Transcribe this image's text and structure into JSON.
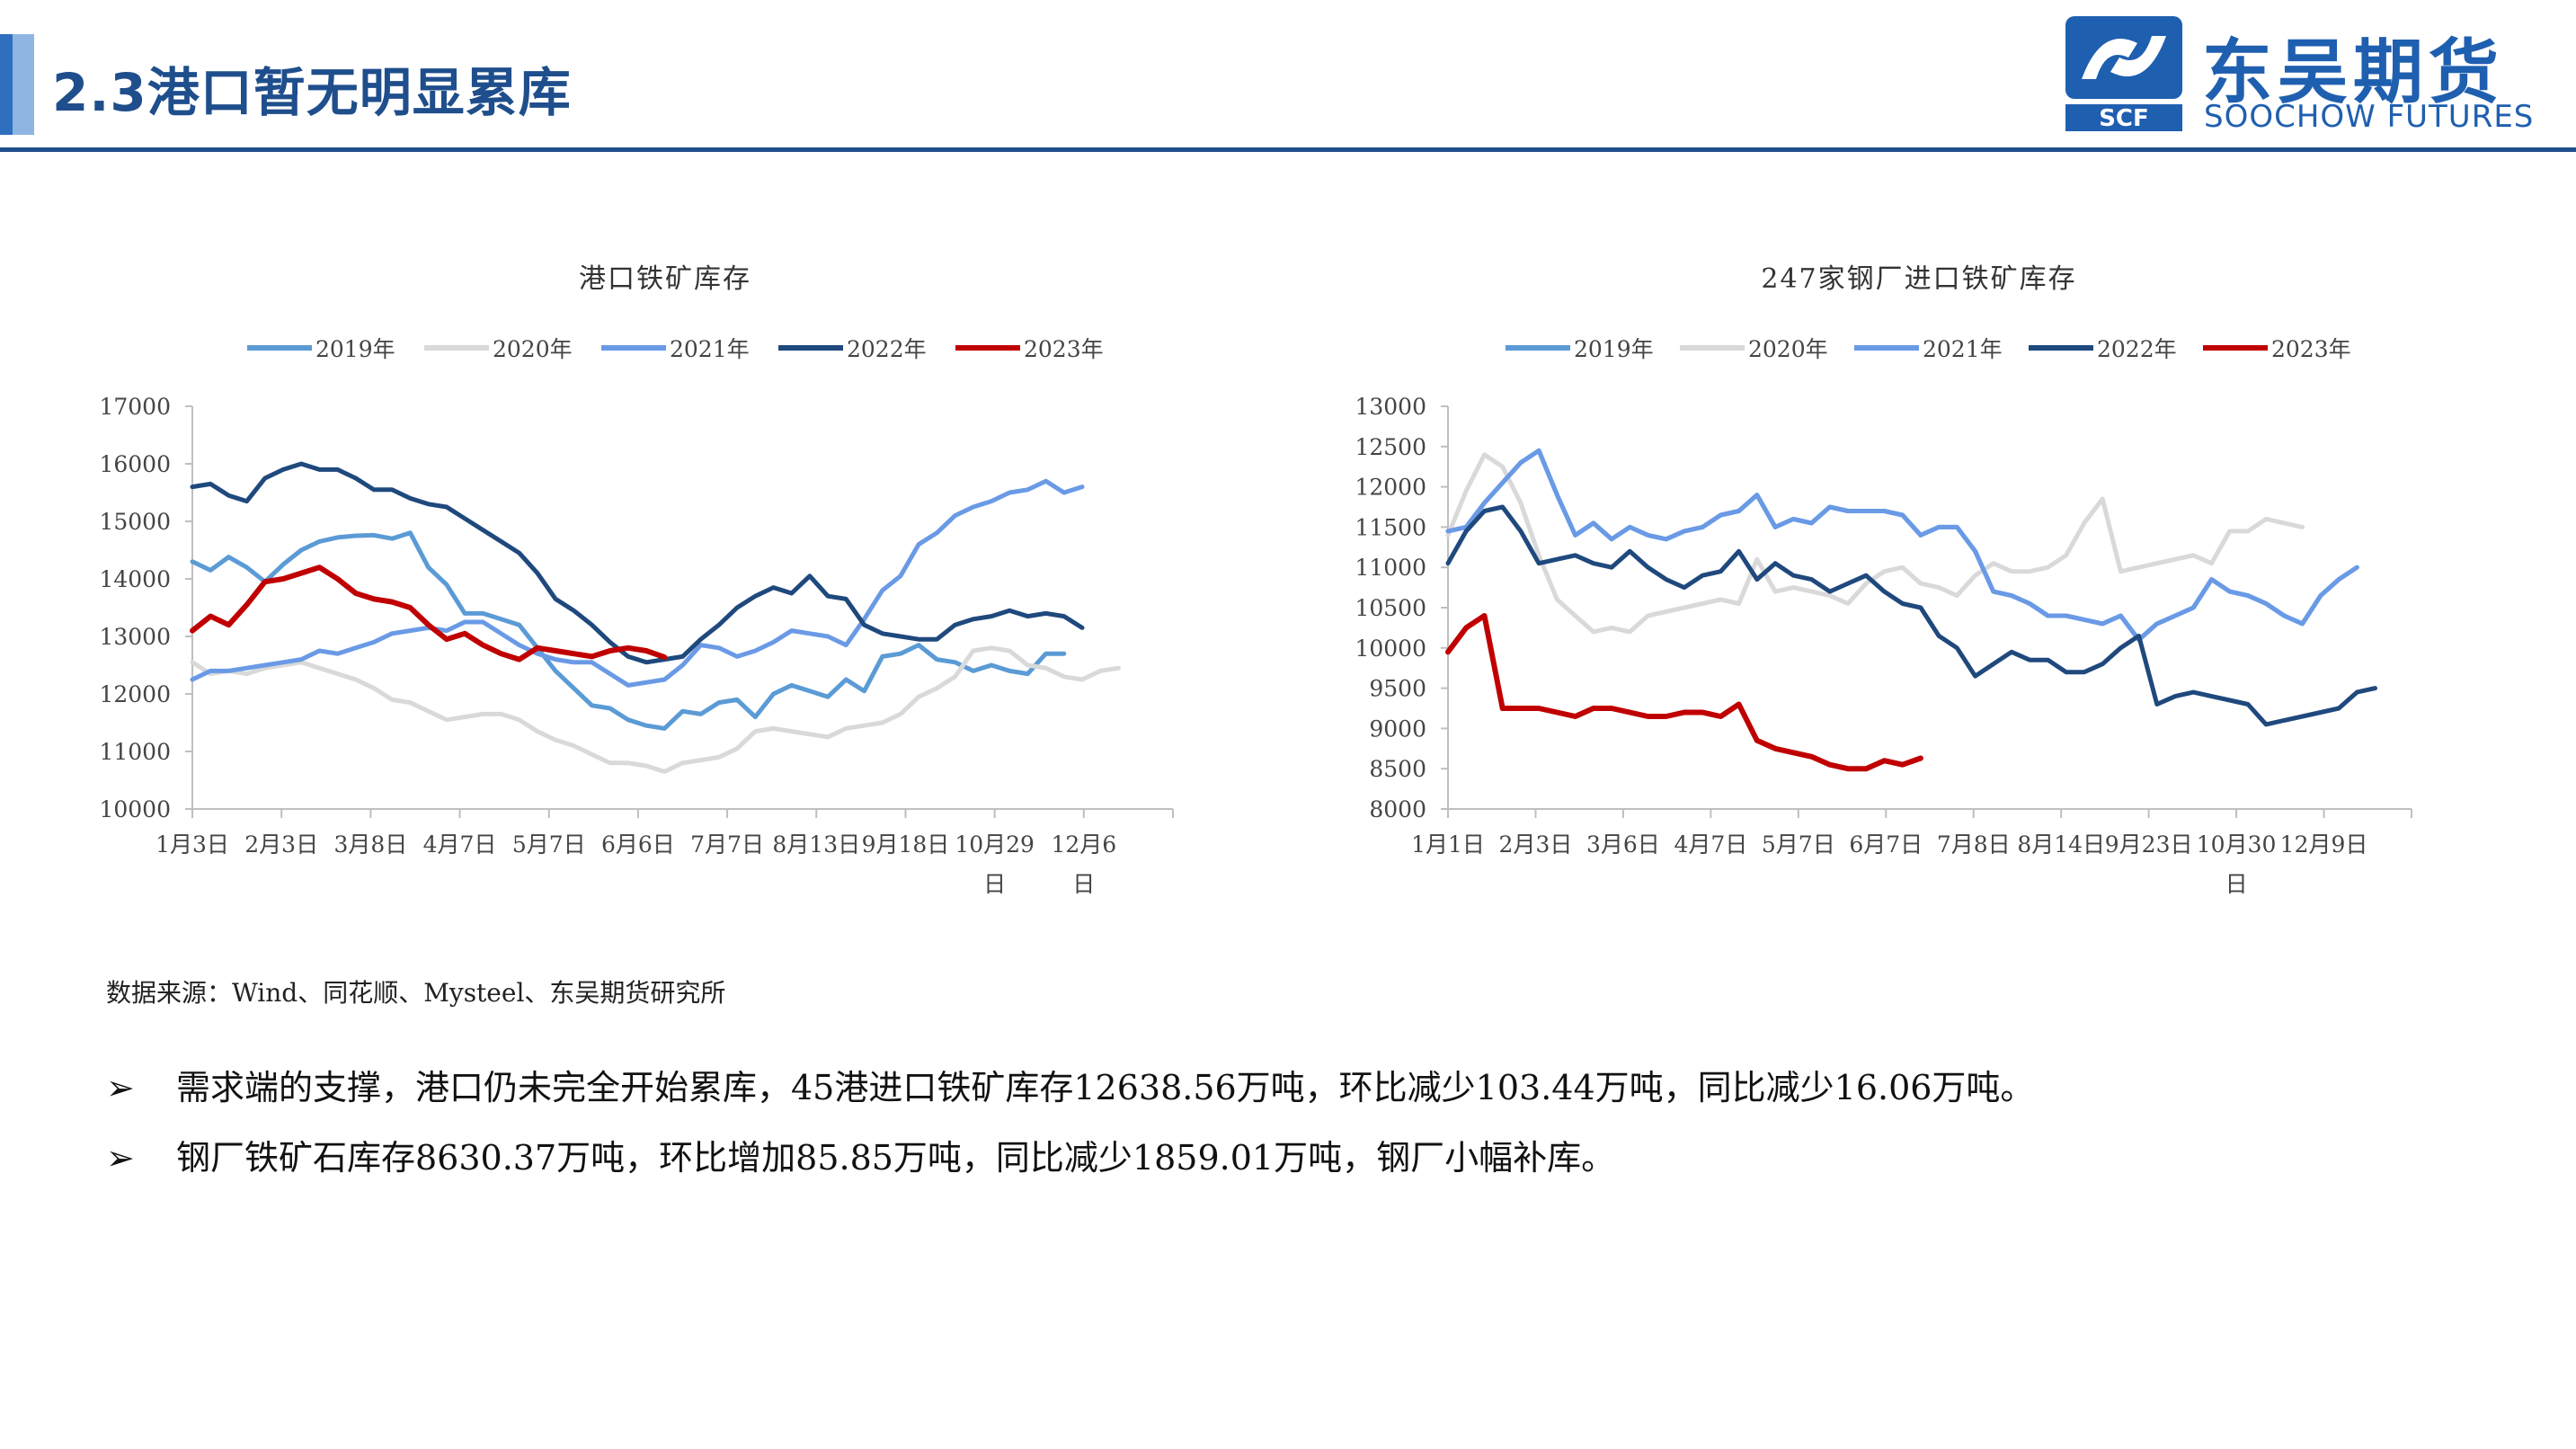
{
  "header": {
    "title": "2.3港口暂无明显累库"
  },
  "logo": {
    "cn": "东吴期货",
    "en": "SOOCHOW FUTURES",
    "mark": "SCF"
  },
  "colors": {
    "2019年": "#5b9bd5",
    "2020年": "#d9d9d9",
    "2021年": "#6a9ae6",
    "2022年": "#1f497d",
    "2023年": "#c00000"
  },
  "chart_data": [
    {
      "type": "line",
      "title": "港口铁矿库存",
      "x_labels": [
        "1月3日",
        "2月3日",
        "3月8日",
        "4月7日",
        "5月7日",
        "6月6日",
        "7月7日",
        "8月13日",
        "9月18日",
        "10月29日",
        "12月6日"
      ],
      "x_label_wrap": [
        false,
        false,
        false,
        false,
        false,
        false,
        false,
        false,
        false,
        true,
        true
      ],
      "ylim": [
        10000,
        17000
      ],
      "yticks": [
        10000,
        11000,
        12000,
        13000,
        14000,
        15000,
        16000,
        17000
      ],
      "xlim": [
        0,
        54
      ],
      "legend": "top",
      "series": [
        {
          "name": "2019年",
          "color": "#5b9bd5",
          "values": [
            14300,
            14150,
            14380,
            14200,
            13950,
            14250,
            14500,
            14650,
            14720,
            14750,
            14760,
            14700,
            14800,
            14200,
            13900,
            13400,
            13400,
            13300,
            13200,
            12800,
            12400,
            12100,
            11800,
            11750,
            11550,
            11450,
            11400,
            11700,
            11650,
            11850,
            11900,
            11600,
            12000,
            12150,
            12050,
            11950,
            12250,
            12050,
            12650,
            12700,
            12850,
            12600,
            12550,
            12400,
            12500,
            12400,
            12350,
            12700,
            12700
          ]
        },
        {
          "name": "2020年",
          "color": "#d9d9d9",
          "values": [
            12550,
            12350,
            12400,
            12350,
            12450,
            12500,
            12550,
            12450,
            12350,
            12250,
            12100,
            11900,
            11850,
            11700,
            11550,
            11600,
            11650,
            11650,
            11550,
            11350,
            11200,
            11100,
            10950,
            10800,
            10800,
            10750,
            10650,
            10800,
            10850,
            10900,
            11050,
            11350,
            11400,
            11350,
            11300,
            11250,
            11400,
            11450,
            11500,
            11650,
            11950,
            12100,
            12300,
            12750,
            12800,
            12750,
            12500,
            12450,
            12300,
            12250,
            12400,
            12450
          ]
        },
        {
          "name": "2021年",
          "color": "#6a9ae6",
          "values": [
            12250,
            12400,
            12400,
            12450,
            12500,
            12550,
            12600,
            12750,
            12700,
            12800,
            12900,
            13050,
            13100,
            13150,
            13100,
            13250,
            13250,
            13050,
            12850,
            12700,
            12600,
            12550,
            12550,
            12350,
            12150,
            12200,
            12250,
            12500,
            12850,
            12800,
            12650,
            12750,
            12900,
            13100,
            13050,
            13000,
            12850,
            13300,
            13800,
            14050,
            14600,
            14800,
            15100,
            15250,
            15350,
            15500,
            15550,
            15700,
            15500,
            15600
          ]
        },
        {
          "name": "2022年",
          "color": "#1f497d",
          "values": [
            15600,
            15650,
            15450,
            15350,
            15750,
            15900,
            16000,
            15900,
            15900,
            15750,
            15550,
            15550,
            15400,
            15300,
            15250,
            15050,
            14850,
            14650,
            14450,
            14100,
            13650,
            13450,
            13200,
            12900,
            12650,
            12550,
            12600,
            12650,
            12950,
            13200,
            13500,
            13700,
            13850,
            13750,
            14050,
            13700,
            13650,
            13200,
            13050,
            13000,
            12950,
            12950,
            13200,
            13300,
            13350,
            13450,
            13350,
            13400,
            13350,
            13150
          ]
        },
        {
          "name": "2023年",
          "color": "#c00000",
          "values": [
            13100,
            13350,
            13200,
            13550,
            13950,
            14000,
            14100,
            14200,
            14000,
            13750,
            13650,
            13600,
            13500,
            13200,
            12950,
            13050,
            12850,
            12700,
            12600,
            12800,
            12750,
            12700,
            12650,
            12750,
            12800,
            12750,
            12638.56
          ]
        }
      ]
    },
    {
      "type": "line",
      "title": "247家钢厂进口铁矿库存",
      "x_labels": [
        "1月1日",
        "2月3日",
        "3月6日",
        "4月7日",
        "5月7日",
        "6月7日",
        "7月8日",
        "8月14日",
        "9月23日",
        "10月30日",
        "12月9日"
      ],
      "x_label_wrap": [
        false,
        false,
        false,
        false,
        false,
        false,
        false,
        false,
        false,
        true,
        false
      ],
      "ylim": [
        8000,
        13000
      ],
      "yticks": [
        8000,
        8500,
        9000,
        9500,
        10000,
        10500,
        11000,
        11500,
        12000,
        12500,
        13000
      ],
      "xlim": [
        0,
        53
      ],
      "legend": "top",
      "series": [
        {
          "name": "2019年",
          "color": "#5b9bd5",
          "values": [
            11450,
            11500,
            11800,
            12050,
            12300,
            12450,
            11900,
            11400,
            11550,
            11350,
            11500,
            11400,
            11350,
            11450,
            11500,
            11650,
            11700,
            11900,
            11500,
            11600,
            11550,
            11750,
            11700,
            11700,
            11700,
            11650,
            11400,
            11500,
            11500,
            11200,
            10700,
            10650,
            10550,
            10400,
            10400,
            10350,
            10300,
            10400,
            10100,
            10300,
            10400,
            10500,
            10850,
            10700,
            10650,
            10550,
            10400,
            10300,
            10650,
            10850,
            11000
          ]
        },
        {
          "name": "2020年",
          "color": "#d9d9d9",
          "values": [
            11400,
            11950,
            12400,
            12250,
            11800,
            11150,
            10600,
            10400,
            10200,
            10250,
            10200,
            10400,
            10450,
            10500,
            10550,
            10600,
            10550,
            11100,
            10700,
            10750,
            10700,
            10650,
            10550,
            10800,
            10950,
            11000,
            10800,
            10750,
            10650,
            10900,
            11050,
            10950,
            10950,
            11000,
            11150,
            11550,
            11850,
            10950,
            11000,
            11050,
            11100,
            11150,
            11050,
            11450,
            11450,
            11600,
            11550,
            11500
          ]
        },
        {
          "name": "2021年",
          "color": "#6a9ae6",
          "values": [
            11450,
            11500,
            11800,
            12050,
            12300,
            12450,
            11900,
            11400,
            11550,
            11350,
            11500,
            11400,
            11350,
            11450,
            11500,
            11650,
            11700,
            11900,
            11500,
            11600,
            11550,
            11750,
            11700,
            11700,
            11700,
            11650,
            11400,
            11500,
            11500,
            11200,
            10700,
            10650,
            10550,
            10400,
            10400,
            10350,
            10300,
            10400,
            10100,
            10300,
            10400,
            10500,
            10850,
            10700,
            10650,
            10550,
            10400,
            10300,
            10650,
            10850,
            11000
          ]
        },
        {
          "name": "2022年",
          "color": "#1f497d",
          "values": [
            11050,
            11450,
            11700,
            11750,
            11450,
            11050,
            11100,
            11150,
            11050,
            11000,
            11200,
            11000,
            10850,
            10750,
            10900,
            10950,
            11200,
            10850,
            11050,
            10900,
            10850,
            10700,
            10800,
            10900,
            10700,
            10550,
            10500,
            10150,
            10000,
            9650,
            9800,
            9950,
            9850,
            9850,
            9700,
            9700,
            9800,
            10000,
            10150,
            9300,
            9400,
            9450,
            9400,
            9350,
            9300,
            9050,
            9100,
            9150,
            9200,
            9250,
            9450,
            9500
          ]
        },
        {
          "name": "2023年",
          "color": "#c00000",
          "values": [
            9950,
            10250,
            10400,
            9250,
            9250,
            9250,
            9200,
            9150,
            9250,
            9250,
            9200,
            9150,
            9150,
            9200,
            9200,
            9150,
            9300,
            8850,
            8750,
            8700,
            8650,
            8550,
            8500,
            8500,
            8600,
            8550,
            8630.37
          ]
        }
      ]
    }
  ],
  "source": "数据来源：Wind、同花顺、Mysteel、东吴期货研究所",
  "bullets": [
    "需求端的支撑，港口仍未完全开始累库，45港进口铁矿库存12638.56万吨，环比减少103.44万吨，同比减少16.06万吨。",
    "钢厂铁矿石库存8630.37万吨，环比增加85.85万吨，同比减少1859.01万吨，钢厂小幅补库。"
  ],
  "bullet_marker": "➢"
}
